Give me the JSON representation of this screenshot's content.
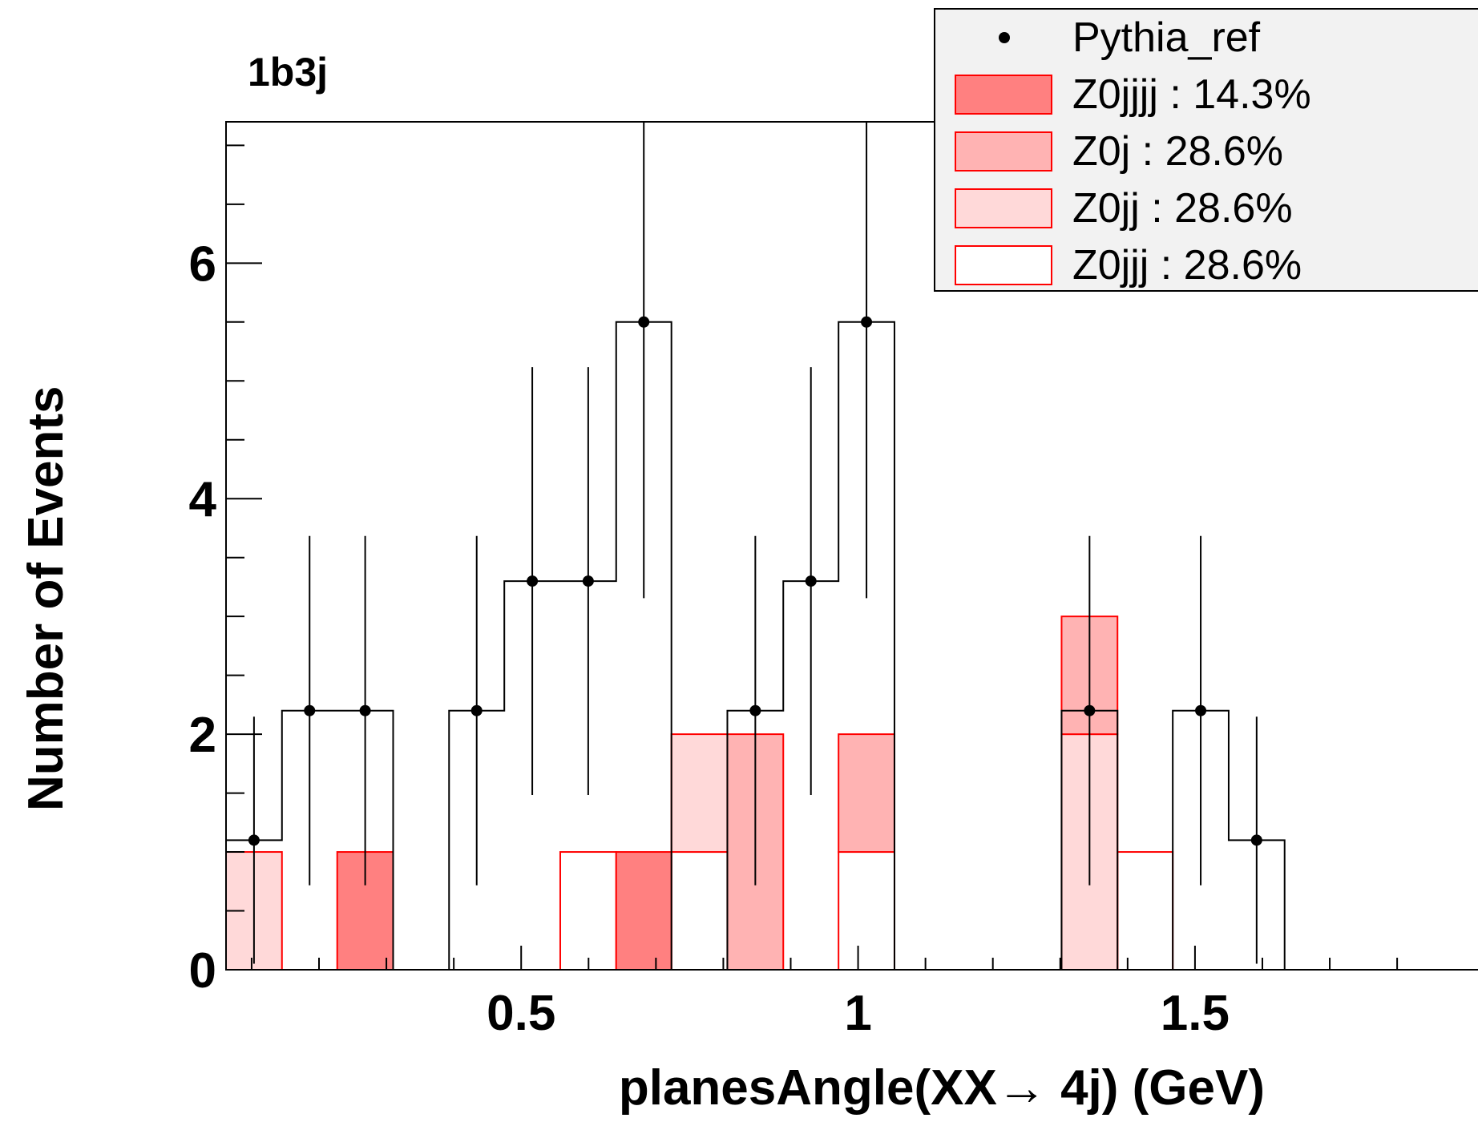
{
  "chart_data": {
    "type": "bar",
    "stacked": true,
    "title": "1b3j",
    "xlabel": "planesAngle(XX→ 4j) (GeV)",
    "ylabel": "Number of Events",
    "xlim": [
      0.062,
      1.92
    ],
    "ylim": [
      0,
      7.2
    ],
    "x_ticks": [
      0.5,
      1,
      1.5
    ],
    "x_tick_labels": [
      "0.5",
      "1",
      "1.5"
    ],
    "y_ticks": [
      0,
      2,
      4,
      6
    ],
    "y_tick_labels": [
      "0",
      "2",
      "4",
      "6"
    ],
    "bin_edges": [
      0.062,
      0.145,
      0.227,
      0.31,
      0.393,
      0.475,
      0.558,
      0.641,
      0.723,
      0.806,
      0.889,
      0.971,
      1.054,
      1.137,
      1.219,
      1.302,
      1.385,
      1.467,
      1.55,
      1.633,
      1.715,
      1.798,
      1.881
    ],
    "stack_order": [
      "Z0jjj",
      "Z0jj",
      "Z0j",
      "Z0jjjj"
    ],
    "series": [
      {
        "name": "Pythia_ref",
        "kind": "data",
        "values": [
          1.1,
          2.2,
          2.2,
          0,
          2.2,
          3.3,
          3.3,
          5.5,
          0,
          2.2,
          3.3,
          5.5,
          0,
          0,
          0,
          2.2,
          0,
          2.2,
          1.1,
          0,
          0,
          0
        ]
      },
      {
        "name": "Z0jjj",
        "values": [
          0,
          0,
          0,
          0,
          0,
          0,
          1,
          0,
          1,
          0,
          0,
          1,
          0,
          0,
          0,
          0,
          1,
          0,
          0,
          0,
          0,
          0
        ]
      },
      {
        "name": "Z0jj",
        "values": [
          1,
          0,
          0,
          0,
          0,
          0,
          0,
          0,
          1,
          0,
          0,
          0,
          0,
          0,
          0,
          2,
          0,
          0,
          0,
          0,
          0,
          0
        ]
      },
      {
        "name": "Z0j",
        "values": [
          0,
          0,
          0,
          0,
          0,
          0,
          0,
          0,
          0,
          2,
          0,
          1,
          0,
          0,
          0,
          1,
          0,
          0,
          0,
          0,
          0,
          0
        ]
      },
      {
        "name": "Z0jjjj",
        "values": [
          0,
          0,
          1,
          0,
          0,
          0,
          0,
          1,
          0,
          0,
          0,
          0,
          0,
          0,
          0,
          0,
          0,
          0,
          0,
          0,
          0,
          0
        ]
      }
    ],
    "legend": {
      "placement": "top-right",
      "entries": [
        {
          "series": "Pythia_ref",
          "label": "Pythia_ref",
          "marker": "dot"
        },
        {
          "series": "Z0jjjj",
          "label": "Z0jjjj : 14.3%",
          "marker": "box"
        },
        {
          "series": "Z0j",
          "label": "Z0j : 28.6%",
          "marker": "box"
        },
        {
          "series": "Z0jj",
          "label": "Z0jj : 28.6%",
          "marker": "box"
        },
        {
          "series": "Z0jjj",
          "label": "Z0jjj : 28.6%",
          "marker": "box"
        }
      ]
    },
    "colors": {
      "Z0jjjj": "#ff8080",
      "Z0j": "#ffb3b3",
      "Z0jj": "#ffd9d9",
      "Z0jjj": "#ffffff",
      "stroke": "#ff0000",
      "data": "#000000",
      "legend_bg": "#f2f2f2"
    },
    "grid": false
  }
}
